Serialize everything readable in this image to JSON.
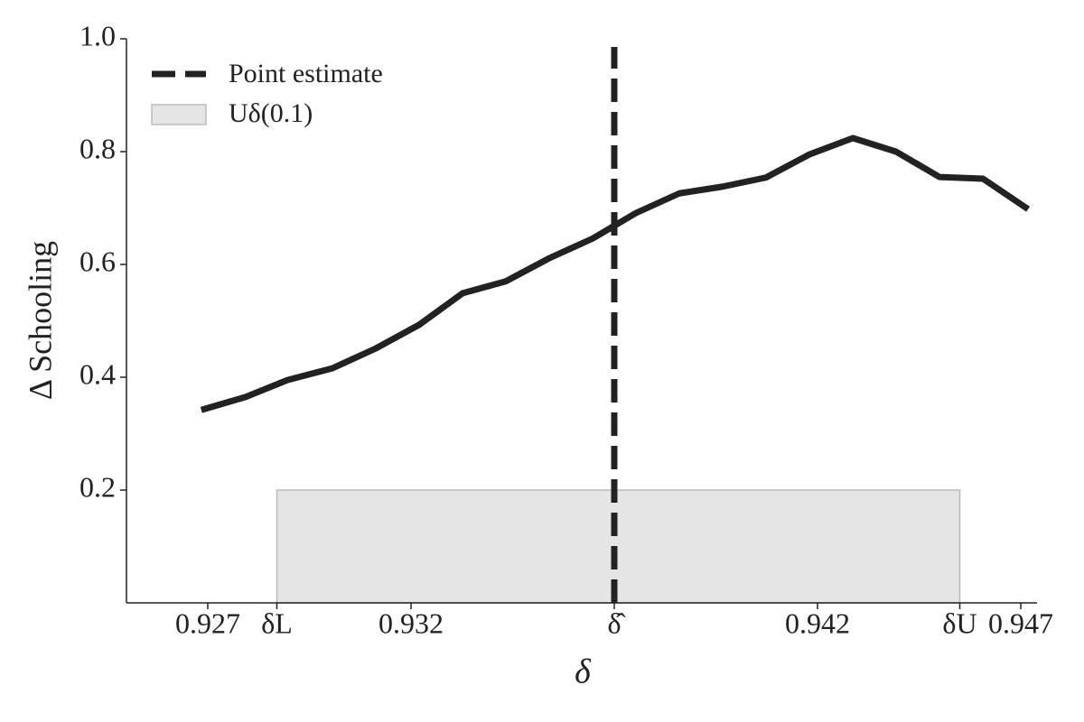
{
  "chart_data": {
    "type": "line",
    "x_label": "δ",
    "y_label": "Δ Schooling",
    "xlim": [
      0.925,
      0.9474
    ],
    "ylim": [
      0,
      1.0
    ],
    "xticks": [
      0.927,
      {
        "value": 0.9287,
        "label": "δL"
      },
      0.932,
      {
        "value": 0.937,
        "label": "δ̂"
      },
      0.942,
      {
        "value": 0.9455,
        "label": "δU"
      },
      0.947
    ],
    "yticks": [
      0.2,
      0.4,
      0.6,
      {
        "value": 0.8,
        "label": "0.8"
      },
      {
        "value": 1.0,
        "label": "1.0"
      }
    ],
    "series": [
      {
        "color": "#222222",
        "x": [
          0.92684,
          0.92793,
          0.92896,
          0.93007,
          0.93113,
          0.9322,
          0.93327,
          0.93433,
          0.9354,
          0.93647,
          0.93753,
          0.9386,
          0.93967,
          0.94073,
          0.9418,
          0.94287,
          0.94393,
          0.945,
          0.94607,
          0.94718
        ],
        "values": [
          0.342,
          0.365,
          0.395,
          0.416,
          0.451,
          0.493,
          0.549,
          0.57,
          0.611,
          0.646,
          0.691,
          0.726,
          0.738,
          0.754,
          0.795,
          0.824,
          0.8,
          0.755,
          0.752,
          0.698
        ]
      }
    ],
    "point_estimate": {
      "name": "Point estimate",
      "x": 0.937,
      "color": "#222222"
    },
    "band": {
      "name": "Uδ(0.1)",
      "x": [
        0.9287,
        0.9455
      ],
      "y": [
        0,
        0.2
      ],
      "color": "#e5e5e5"
    },
    "legend": "upper left"
  }
}
